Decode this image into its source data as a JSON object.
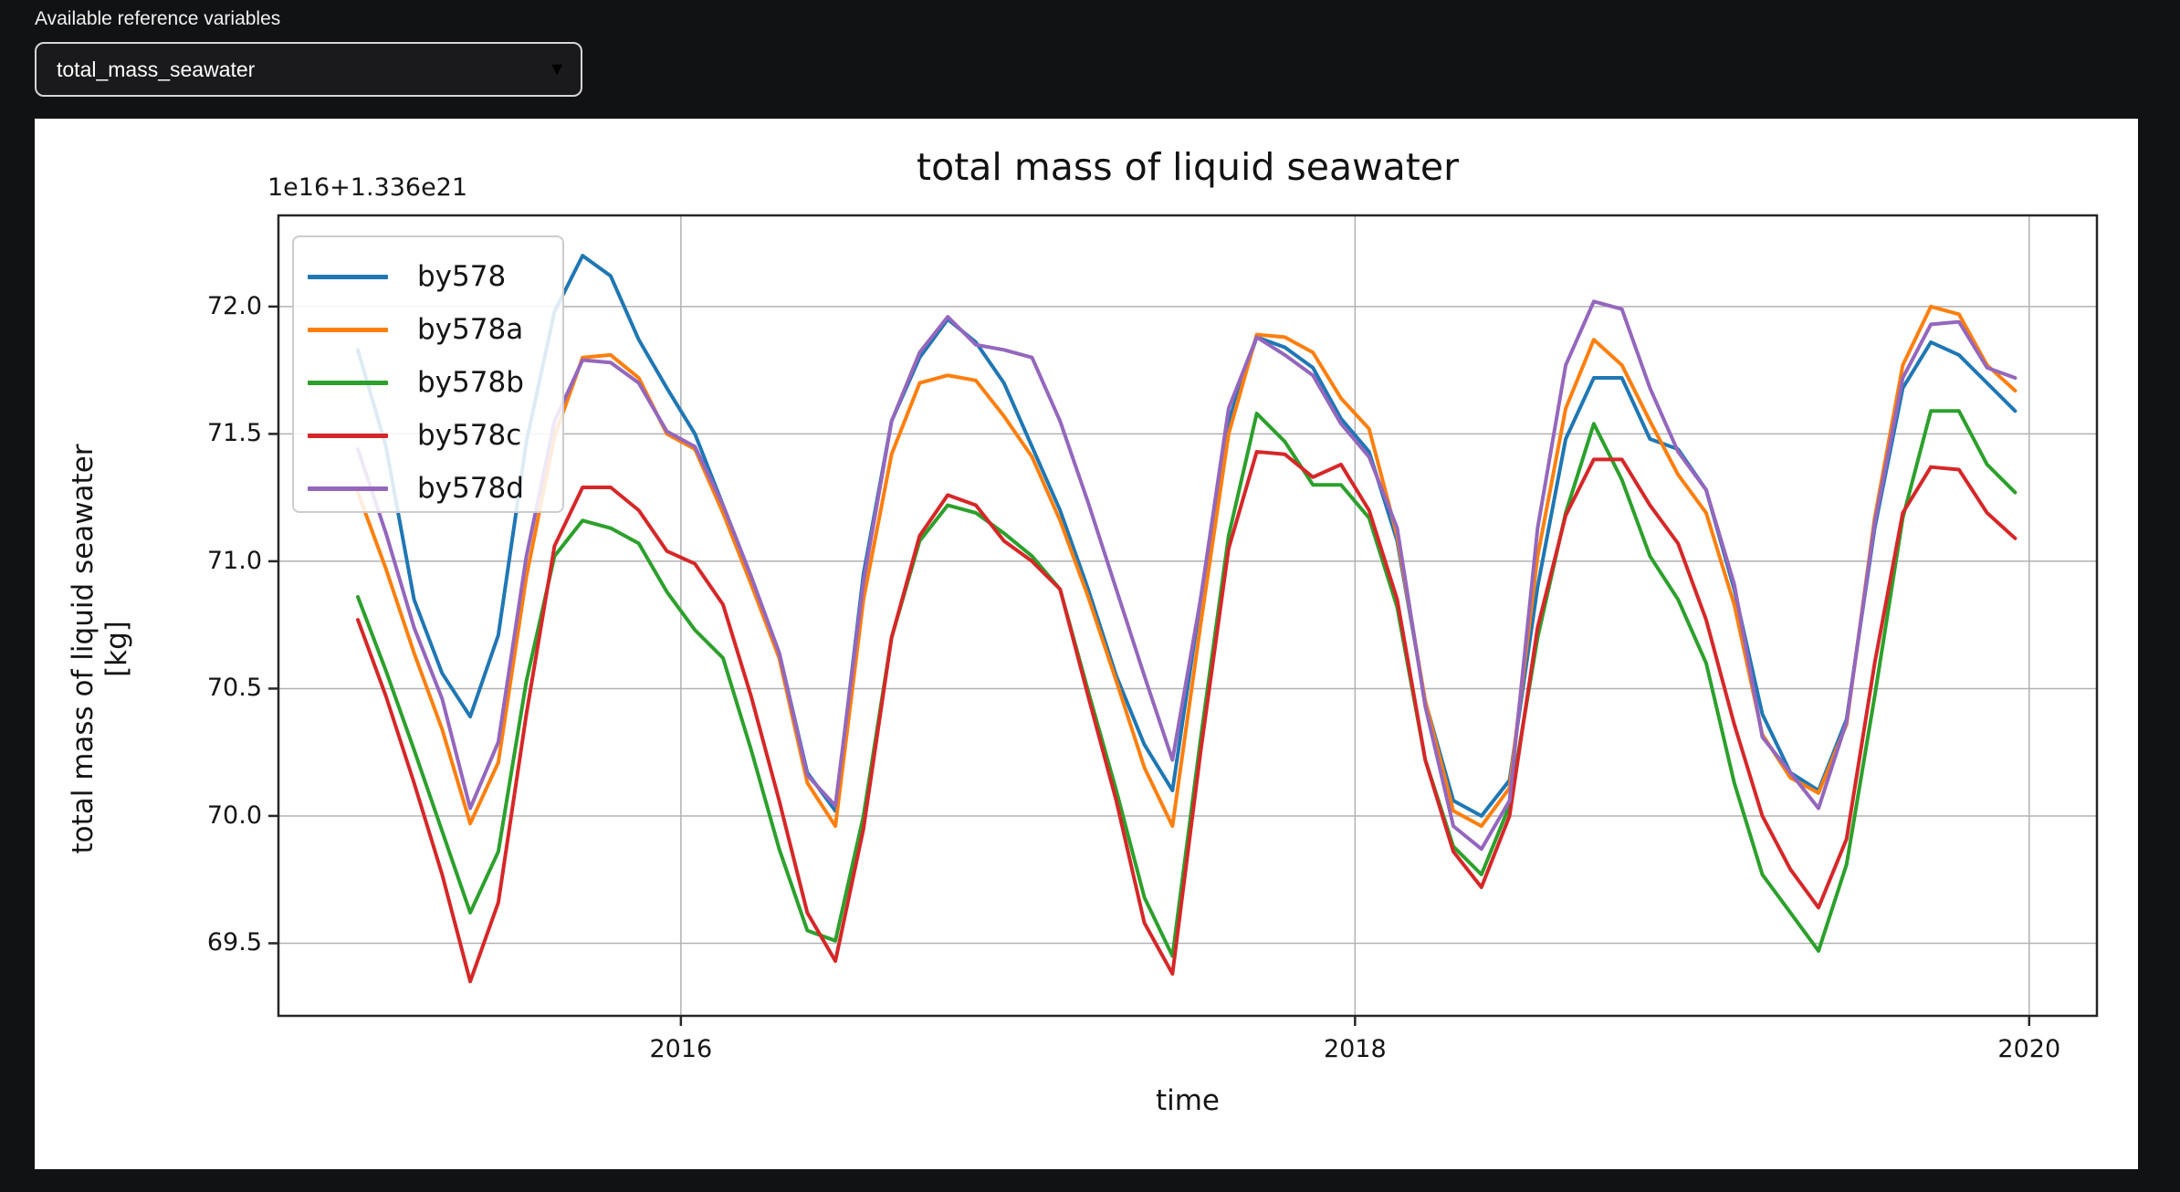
{
  "controls": {
    "label": "Available reference variables",
    "dropdown": {
      "value": "total_mass_seawater",
      "caret": "▼"
    }
  },
  "figure": {
    "title": "total mass of liquid seawater",
    "offset_text": "1e16+1.336e21",
    "xlabel": "time",
    "ylabel_line1": "total mass of liquid seawater",
    "ylabel_line2": "[kg]"
  },
  "chart_data": {
    "type": "line",
    "title": "total mass of liquid seawater",
    "xlabel": "time",
    "ylabel": "total mass of liquid seawater [kg]",
    "y_offset_text": "1e16+1.336e21",
    "grid": true,
    "legend_position": "upper left",
    "x_start_year": 2015,
    "points_per_year": 12,
    "xlim": [
      2014.806,
      2020.201
    ],
    "ylim": [
      69.215,
      72.358
    ],
    "xticks": {
      "values": [
        2016,
        2018,
        2020
      ],
      "labels": [
        "2016",
        "2018",
        "2020"
      ]
    },
    "yticks": {
      "values": [
        69.5,
        70.0,
        70.5,
        71.0,
        71.5,
        72.0
      ],
      "labels": [
        "69.5",
        "70.0",
        "70.5",
        "71.0",
        "71.5",
        "72.0"
      ]
    },
    "series": [
      {
        "name": "by578",
        "color": "#1f77b4",
        "values": [
          71.83,
          71.45,
          70.85,
          70.56,
          70.39,
          70.71,
          71.47,
          71.98,
          72.2,
          72.12,
          71.87,
          71.68,
          71.5,
          71.22,
          70.94,
          70.64,
          70.17,
          70.02,
          70.95,
          71.55,
          71.8,
          71.95,
          71.86,
          71.7,
          71.45,
          71.2,
          70.89,
          70.55,
          70.28,
          70.1,
          70.85,
          71.55,
          71.88,
          71.84,
          71.76,
          71.56,
          71.43,
          71.08,
          70.45,
          70.06,
          70.0,
          70.14,
          70.9,
          71.48,
          71.72,
          71.72,
          71.48,
          71.44,
          71.28,
          70.89,
          70.4,
          70.17,
          70.1,
          70.38,
          71.13,
          71.68,
          71.86,
          71.81,
          71.7,
          71.59
        ]
      },
      {
        "name": "by578a",
        "color": "#ff7f0e",
        "values": [
          71.27,
          70.97,
          70.64,
          70.34,
          69.97,
          70.21,
          70.94,
          71.49,
          71.8,
          71.81,
          71.72,
          71.5,
          71.44,
          71.19,
          70.91,
          70.62,
          70.13,
          69.96,
          70.85,
          71.42,
          71.7,
          71.73,
          71.71,
          71.57,
          71.41,
          71.16,
          70.86,
          70.53,
          70.19,
          69.96,
          70.75,
          71.5,
          71.89,
          71.88,
          71.82,
          71.64,
          71.52,
          71.1,
          70.45,
          70.02,
          69.96,
          70.11,
          71.02,
          71.6,
          71.87,
          71.77,
          71.55,
          71.34,
          71.19,
          70.83,
          70.32,
          70.15,
          70.09,
          70.36,
          71.17,
          71.77,
          72.0,
          71.97,
          71.77,
          71.67
        ]
      },
      {
        "name": "by578b",
        "color": "#2ca02c",
        "values": [
          70.86,
          70.57,
          70.26,
          69.94,
          69.62,
          69.86,
          70.53,
          71.02,
          71.16,
          71.13,
          71.07,
          70.88,
          70.73,
          70.62,
          70.26,
          69.87,
          69.55,
          69.51,
          70.0,
          70.7,
          71.08,
          71.22,
          71.19,
          71.11,
          71.02,
          70.89,
          70.49,
          70.1,
          69.68,
          69.45,
          70.3,
          71.1,
          71.58,
          71.47,
          71.3,
          71.3,
          71.17,
          70.82,
          70.22,
          69.88,
          69.77,
          70.04,
          70.7,
          71.19,
          71.54,
          71.32,
          71.02,
          70.85,
          70.6,
          70.13,
          69.77,
          69.62,
          69.47,
          69.81,
          70.47,
          71.17,
          71.59,
          71.59,
          71.38,
          71.27
        ]
      },
      {
        "name": "by578c",
        "color": "#d62728",
        "values": [
          70.77,
          70.47,
          70.13,
          69.77,
          69.35,
          69.66,
          70.4,
          71.06,
          71.29,
          71.29,
          71.2,
          71.04,
          70.99,
          70.83,
          70.47,
          70.06,
          69.62,
          69.43,
          69.95,
          70.7,
          71.1,
          71.26,
          71.22,
          71.08,
          71.0,
          70.89,
          70.47,
          70.06,
          69.58,
          69.38,
          70.25,
          71.05,
          71.43,
          71.42,
          71.33,
          71.38,
          71.2,
          70.85,
          70.22,
          69.86,
          69.72,
          70.0,
          70.74,
          71.18,
          71.4,
          71.4,
          71.22,
          71.07,
          70.77,
          70.36,
          70.0,
          69.79,
          69.64,
          69.91,
          70.6,
          71.19,
          71.37,
          71.36,
          71.19,
          71.09
        ]
      },
      {
        "name": "by578d",
        "color": "#9467bd",
        "values": [
          71.44,
          71.11,
          70.74,
          70.46,
          70.03,
          70.29,
          71.02,
          71.55,
          71.79,
          71.78,
          71.7,
          71.51,
          71.45,
          71.22,
          70.94,
          70.64,
          70.16,
          70.04,
          70.92,
          71.55,
          71.82,
          71.96,
          71.85,
          71.83,
          71.8,
          71.55,
          71.23,
          70.89,
          70.55,
          70.22,
          70.85,
          71.6,
          71.88,
          71.81,
          71.73,
          71.54,
          71.41,
          71.13,
          70.43,
          69.96,
          69.87,
          70.06,
          71.13,
          71.77,
          72.02,
          71.99,
          71.68,
          71.43,
          71.28,
          70.91,
          70.31,
          70.17,
          70.03,
          70.37,
          71.15,
          71.72,
          71.93,
          71.94,
          71.76,
          71.72
        ]
      }
    ]
  }
}
